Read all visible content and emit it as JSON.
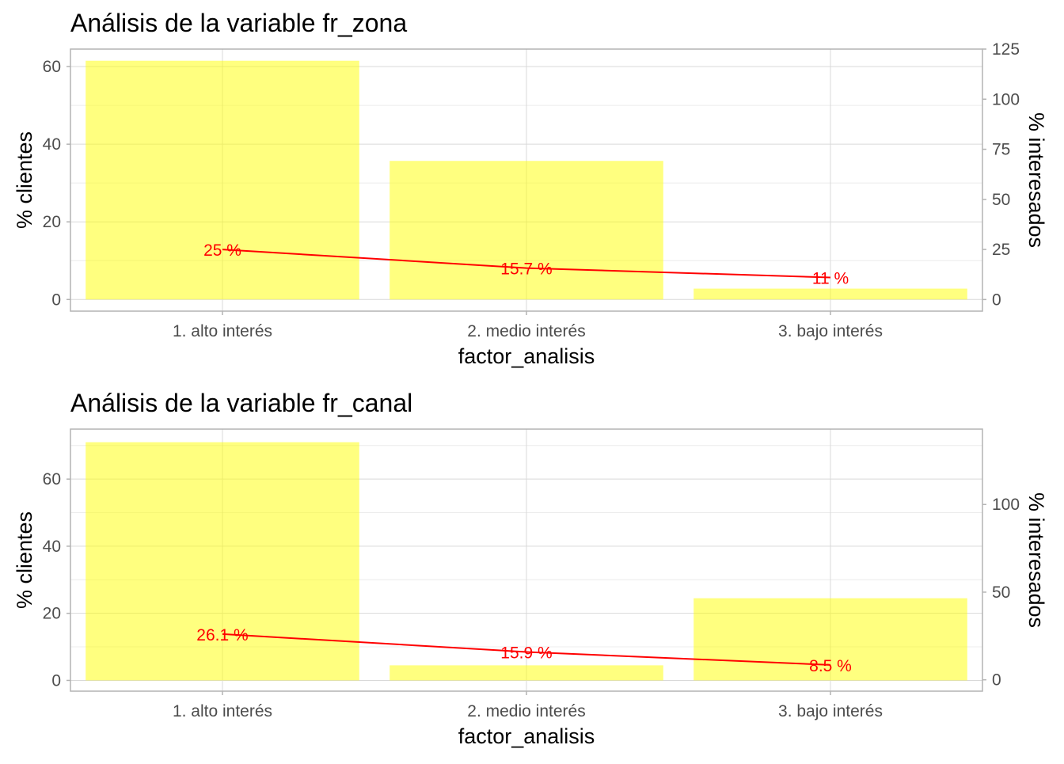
{
  "colors": {
    "bar_fill": "#ffff00",
    "bar_opacity": 0.5,
    "line": "#ff0000",
    "label": "#ff0000",
    "grid_major": "#d9d9d9",
    "grid_minor": "#ececec",
    "panel_border": "#b3b3b3",
    "tick_text": "#4d4d4d"
  },
  "chart_data": [
    {
      "type": "bar",
      "title": "Análisis de la variable fr_zona",
      "xlabel": "factor_analisis",
      "ylabel": "% clientes",
      "y2label": "% interesados",
      "categories": [
        "1. alto interés",
        "2. medio interés",
        "3. bajo interés"
      ],
      "series": [
        {
          "type": "bar",
          "axis": "left",
          "values": [
            61.5,
            35.7,
            2.8
          ]
        },
        {
          "type": "line",
          "axis": "right",
          "values": [
            25,
            15.7,
            11
          ],
          "labels": [
            "25  %",
            "15.7  %",
            "11  %"
          ]
        }
      ],
      "ylim": [
        -3,
        64.5
      ],
      "y2lim": [
        -5.79,
        125
      ],
      "yticks": [
        0,
        20,
        40,
        60
      ],
      "y2ticks": [
        0,
        25,
        50,
        75,
        100,
        125
      ],
      "grid": true
    },
    {
      "type": "bar",
      "title": "Análisis de la variable fr_canal",
      "xlabel": "factor_analisis",
      "ylabel": "% clientes",
      "y2label": "% interesados",
      "categories": [
        "1. alto interés",
        "2. medio interés",
        "3. bajo interés"
      ],
      "series": [
        {
          "type": "bar",
          "axis": "left",
          "values": [
            71,
            4.5,
            24.5
          ]
        },
        {
          "type": "line",
          "axis": "right",
          "values": [
            26.1,
            15.9,
            8.5
          ],
          "labels": [
            "26.1  %",
            "15.9  %",
            "8.5  %"
          ]
        }
      ],
      "ylim": [
        -3.2,
        74.9
      ],
      "y2lim": [
        -6.47,
        143
      ],
      "yticks": [
        0,
        20,
        40,
        60
      ],
      "y2ticks": [
        0,
        50,
        100
      ],
      "grid": true
    }
  ]
}
